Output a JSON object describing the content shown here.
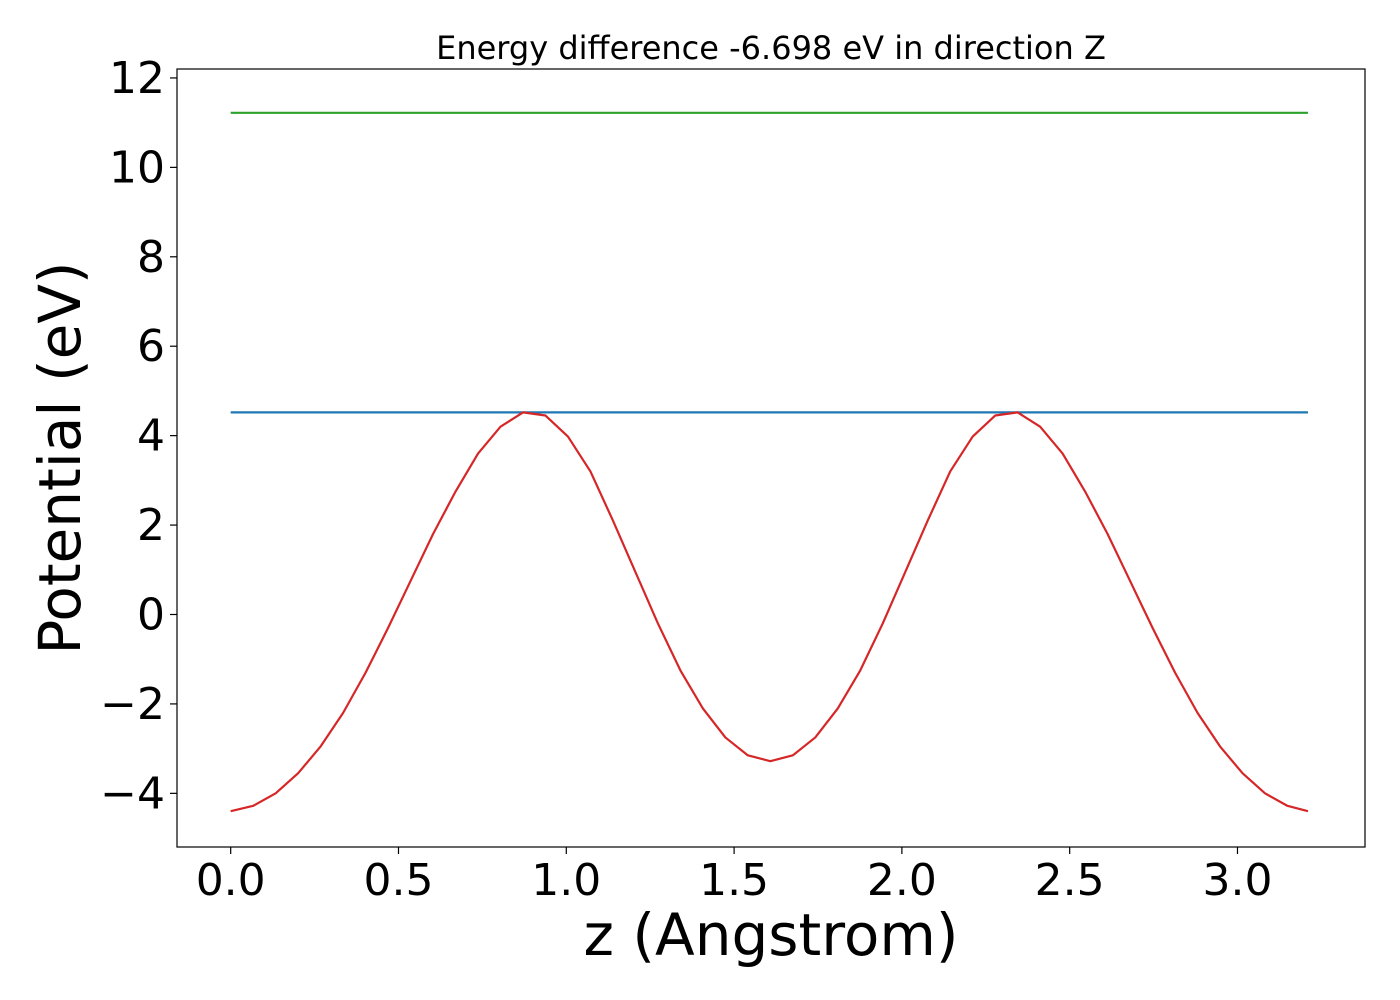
{
  "chart_data": {
    "type": "line",
    "title": "Energy difference -6.698 eV in direction Z",
    "xlabel": "z (Angstrom)",
    "ylabel": "Potential (eV)",
    "xlim": [
      -0.16,
      3.38
    ],
    "ylim": [
      -5.2,
      12.2
    ],
    "xticks": [
      0.0,
      0.5,
      1.0,
      1.5,
      2.0,
      2.5,
      3.0
    ],
    "xtick_labels": [
      "0.0",
      "0.5",
      "1.0",
      "1.5",
      "2.0",
      "2.5",
      "3.0"
    ],
    "yticks": [
      -4,
      -2,
      0,
      2,
      4,
      6,
      8,
      10,
      12
    ],
    "ytick_labels": [
      "−4",
      "−2",
      "0",
      "2",
      "4",
      "6",
      "8",
      "10",
      "12"
    ],
    "grid": false,
    "series": [
      {
        "color": "#2ca02c",
        "x": [
          0.0,
          3.21
        ],
        "y": [
          11.22,
          11.22
        ]
      },
      {
        "color": "#1f77b4",
        "x": [
          0.0,
          3.21
        ],
        "y": [
          4.52,
          4.52
        ]
      },
      {
        "color": "#d62728",
        "x": [
          0.0,
          0.067,
          0.134,
          0.201,
          0.268,
          0.335,
          0.402,
          0.469,
          0.536,
          0.603,
          0.67,
          0.737,
          0.804,
          0.871,
          0.938,
          1.005,
          1.072,
          1.139,
          1.206,
          1.273,
          1.34,
          1.407,
          1.474,
          1.541,
          1.608,
          1.675,
          1.742,
          1.809,
          1.876,
          1.943,
          2.01,
          2.077,
          2.144,
          2.211,
          2.278,
          2.345,
          2.412,
          2.479,
          2.546,
          2.613,
          2.68,
          2.747,
          2.814,
          2.881,
          2.948,
          3.015,
          3.082,
          3.149,
          3.21
        ],
        "y": [
          -4.4,
          -4.28,
          -4.0,
          -3.55,
          -2.95,
          -2.2,
          -1.3,
          -0.3,
          0.75,
          1.8,
          2.75,
          3.6,
          4.2,
          4.52,
          4.45,
          3.98,
          3.2,
          2.1,
          0.95,
          -0.2,
          -1.25,
          -2.1,
          -2.75,
          -3.15,
          -3.28,
          -3.15,
          -2.75,
          -2.1,
          -1.25,
          -0.2,
          0.95,
          2.1,
          3.2,
          3.98,
          4.45,
          4.52,
          4.2,
          3.6,
          2.75,
          1.8,
          0.75,
          -0.3,
          -1.3,
          -2.2,
          -2.95,
          -3.55,
          -4.0,
          -4.28,
          -4.4
        ]
      }
    ]
  }
}
